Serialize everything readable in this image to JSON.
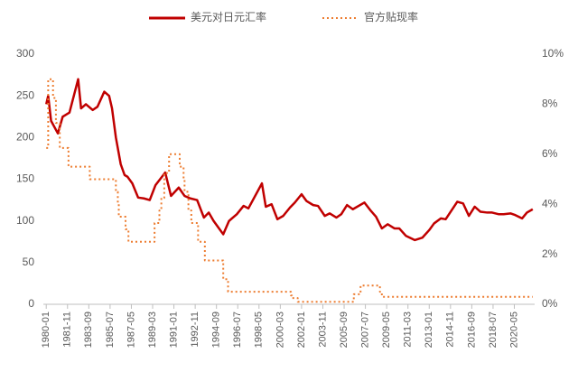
{
  "chart_data": {
    "type": "line",
    "legend": "top",
    "xlim": [
      "1979-10",
      "2022-02"
    ],
    "xticks": [
      "1980-01",
      "1981-11",
      "1983-09",
      "1985-07",
      "1987-05",
      "1989-03",
      "1991-01",
      "1992-11",
      "1994-09",
      "1996-07",
      "1998-05",
      "2000-03",
      "2002-01",
      "2003-11",
      "2005-09",
      "2007-07",
      "2009-05",
      "2011-03",
      "2013-01",
      "2014-11",
      "2016-09",
      "2018-07",
      "2020-05"
    ],
    "ylim": [
      0,
      300
    ],
    "yticks": [
      0,
      50,
      100,
      150,
      200,
      250,
      300
    ],
    "y2lim": [
      0,
      10
    ],
    "y2ticks": [
      {
        "value": 0,
        "label": "0%"
      },
      {
        "value": 2,
        "label": "2%"
      },
      {
        "value": 4,
        "label": "4%"
      },
      {
        "value": 6,
        "label": "6%"
      },
      {
        "value": 8,
        "label": "8%"
      },
      {
        "value": 10,
        "label": "10%"
      }
    ],
    "series": [
      {
        "name": "美元对日元汇率",
        "color": "#c00000",
        "dash": false,
        "step": false,
        "x": [
          "1980-01",
          "1980-03",
          "1980-06",
          "1981-01",
          "1981-06",
          "1982-01",
          "1982-10",
          "1983-01",
          "1983-06",
          "1984-01",
          "1984-06",
          "1985-01",
          "1985-06",
          "1985-09",
          "1986-01",
          "1986-06",
          "1986-10",
          "1987-01",
          "1987-06",
          "1987-12",
          "1988-06",
          "1988-12",
          "1989-06",
          "1990-04",
          "1990-10",
          "1991-06",
          "1991-12",
          "1992-06",
          "1993-01",
          "1993-08",
          "1994-01",
          "1994-06",
          "1995-04",
          "1995-10",
          "1996-06",
          "1997-01",
          "1997-06",
          "1998-08",
          "1998-12",
          "1999-06",
          "1999-12",
          "2000-06",
          "2001-01",
          "2001-06",
          "2002-01",
          "2002-06",
          "2003-01",
          "2003-06",
          "2004-01",
          "2004-06",
          "2005-01",
          "2005-06",
          "2005-12",
          "2006-06",
          "2007-06",
          "2007-12",
          "2008-06",
          "2008-12",
          "2009-06",
          "2010-01",
          "2010-06",
          "2011-01",
          "2011-10",
          "2012-06",
          "2013-01",
          "2013-06",
          "2014-01",
          "2014-06",
          "2015-06",
          "2015-12",
          "2016-06",
          "2016-12",
          "2017-06",
          "2018-01",
          "2018-06",
          "2019-01",
          "2019-06",
          "2020-01",
          "2020-06",
          "2021-01",
          "2021-06",
          "2021-12"
        ],
        "values": [
          240,
          250,
          220,
          205,
          225,
          230,
          270,
          235,
          240,
          233,
          237,
          255,
          250,
          235,
          200,
          168,
          155,
          153,
          145,
          128,
          127,
          125,
          143,
          158,
          130,
          140,
          130,
          127,
          125,
          104,
          110,
          100,
          84,
          100,
          108,
          118,
          115,
          145,
          117,
          120,
          102,
          106,
          116,
          122,
          132,
          124,
          119,
          118,
          106,
          109,
          104,
          108,
          119,
          114,
          122,
          113,
          105,
          91,
          96,
          91,
          91,
          82,
          77,
          80,
          89,
          97,
          103,
          102,
          123,
          121,
          106,
          117,
          111,
          110,
          110,
          108,
          108,
          109,
          107,
          103,
          110,
          114
        ]
      },
      {
        "name": "官方贴现率",
        "color": "#ed7d31",
        "dash": true,
        "step": true,
        "axis": "y2",
        "x": [
          "1980-01",
          "1980-03",
          "1980-08",
          "1980-11",
          "1981-03",
          "1981-12",
          "1983-10",
          "1986-01",
          "1986-03",
          "1986-04",
          "1986-11",
          "1987-02",
          "1989-05",
          "1989-10",
          "1989-12",
          "1990-03",
          "1990-08",
          "1991-07",
          "1991-11",
          "1991-12",
          "1992-04",
          "1992-07",
          "1993-02",
          "1993-09",
          "1995-04",
          "1995-09",
          "2001-02",
          "2001-03",
          "2001-09",
          "2006-07",
          "2007-02",
          "2008-10",
          "2008-12",
          "2021-12"
        ],
        "values": [
          6.25,
          9.0,
          8.25,
          7.25,
          6.25,
          5.5,
          5.0,
          4.5,
          4.0,
          3.5,
          3.0,
          2.5,
          3.25,
          3.75,
          4.25,
          5.25,
          6.0,
          5.5,
          5.0,
          4.5,
          3.75,
          3.25,
          2.5,
          1.75,
          1.0,
          0.5,
          0.35,
          0.25,
          0.1,
          0.4,
          0.75,
          0.5,
          0.3,
          0.3
        ]
      }
    ]
  }
}
